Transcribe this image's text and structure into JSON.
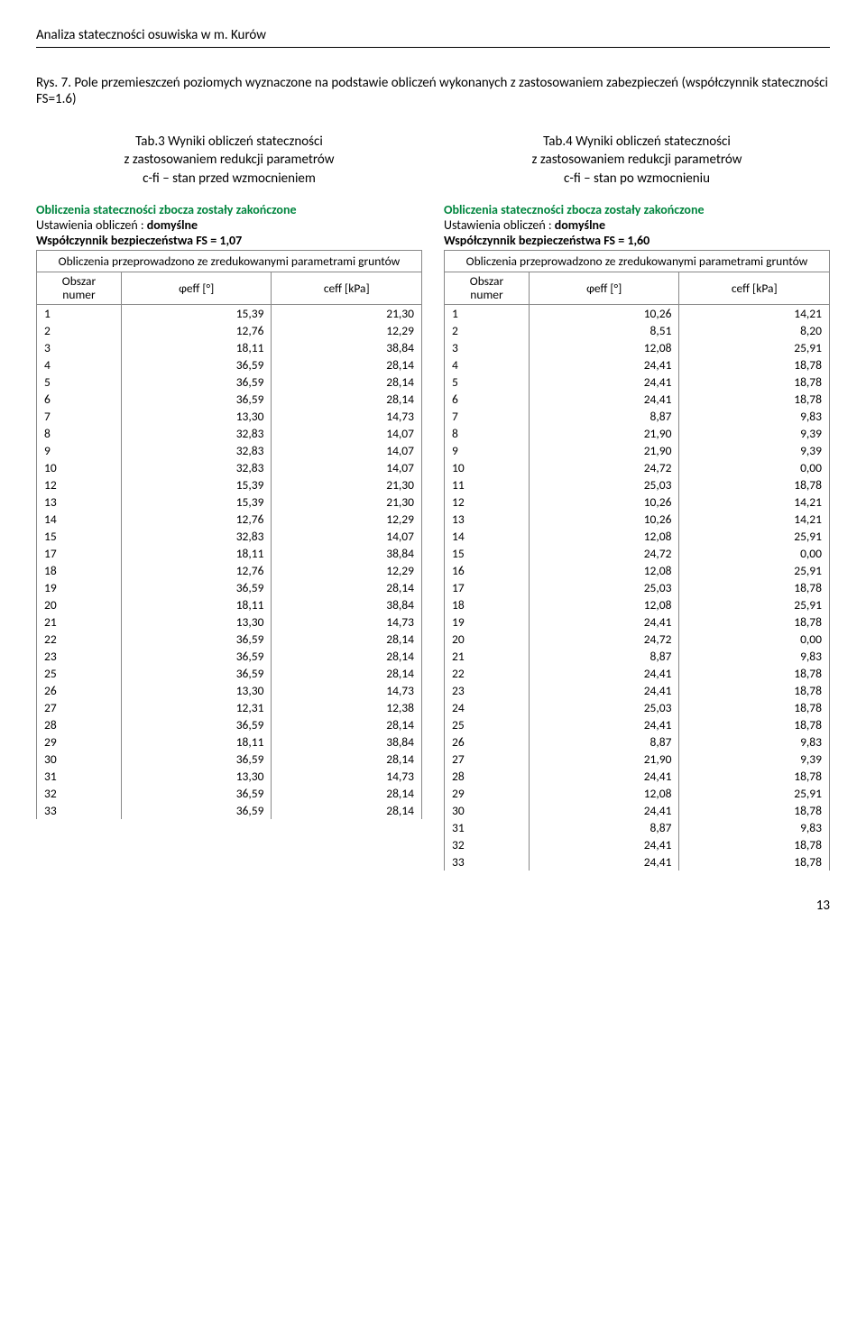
{
  "header": "Analiza stateczności osuwiska w m. Kurów",
  "fig_caption": "Rys. 7. Pole przemieszczeń poziomych wyznaczone na podstawie obliczeń wykonanych z zastosowaniem zabezpieczeń (współczynnik stateczności FS=1.6)",
  "left": {
    "caption": "Tab.3 Wyniki obliczeń stateczności\nz zastosowaniem redukcji parametrów\nc-fi – stan przed wzmocnieniem",
    "status": "Obliczenia stateczności zbocza zostały zakończone",
    "settings_prefix": "Ustawienia obliczeń : ",
    "settings_val": "domyślne",
    "fs": "Współczynnik bezpieczeństwa FS = 1,07",
    "note": "Obliczenia przeprowadzono ze zredukowanymi parametrami gruntów",
    "head1a": "Obszar",
    "head1b": "numer",
    "head2": "φeff [°]",
    "head3": "ceff [kPa]",
    "rows": [
      [
        "1",
        "15,39",
        "21,30"
      ],
      [
        "2",
        "12,76",
        "12,29"
      ],
      [
        "3",
        "18,11",
        "38,84"
      ],
      [
        "4",
        "36,59",
        "28,14"
      ],
      [
        "5",
        "36,59",
        "28,14"
      ],
      [
        "6",
        "36,59",
        "28,14"
      ],
      [
        "7",
        "13,30",
        "14,73"
      ],
      [
        "8",
        "32,83",
        "14,07"
      ],
      [
        "9",
        "32,83",
        "14,07"
      ],
      [
        "10",
        "32,83",
        "14,07"
      ],
      [
        "12",
        "15,39",
        "21,30"
      ],
      [
        "13",
        "15,39",
        "21,30"
      ],
      [
        "14",
        "12,76",
        "12,29"
      ],
      [
        "15",
        "32,83",
        "14,07"
      ],
      [
        "17",
        "18,11",
        "38,84"
      ],
      [
        "18",
        "12,76",
        "12,29"
      ],
      [
        "19",
        "36,59",
        "28,14"
      ],
      [
        "20",
        "18,11",
        "38,84"
      ],
      [
        "21",
        "13,30",
        "14,73"
      ],
      [
        "22",
        "36,59",
        "28,14"
      ],
      [
        "23",
        "36,59",
        "28,14"
      ],
      [
        "25",
        "36,59",
        "28,14"
      ],
      [
        "26",
        "13,30",
        "14,73"
      ],
      [
        "27",
        "12,31",
        "12,38"
      ],
      [
        "28",
        "36,59",
        "28,14"
      ],
      [
        "29",
        "18,11",
        "38,84"
      ],
      [
        "30",
        "36,59",
        "28,14"
      ],
      [
        "31",
        "13,30",
        "14,73"
      ],
      [
        "32",
        "36,59",
        "28,14"
      ],
      [
        "33",
        "36,59",
        "28,14"
      ]
    ]
  },
  "right": {
    "caption": "Tab.4 Wyniki obliczeń stateczności\nz zastosowaniem redukcji parametrów\nc-fi – stan po wzmocnieniu",
    "status": "Obliczenia stateczności zbocza zostały zakończone",
    "settings_prefix": "Ustawienia obliczeń : ",
    "settings_val": "domyślne",
    "fs": "Współczynnik bezpieczeństwa FS = 1,60",
    "note": "Obliczenia przeprowadzono ze zredukowanymi parametrami gruntów",
    "head1a": "Obszar",
    "head1b": "numer",
    "head2": "φeff [°]",
    "head3": "ceff [kPa]",
    "rows": [
      [
        "1",
        "10,26",
        "14,21"
      ],
      [
        "2",
        "8,51",
        "8,20"
      ],
      [
        "3",
        "12,08",
        "25,91"
      ],
      [
        "4",
        "24,41",
        "18,78"
      ],
      [
        "5",
        "24,41",
        "18,78"
      ],
      [
        "6",
        "24,41",
        "18,78"
      ],
      [
        "7",
        "8,87",
        "9,83"
      ],
      [
        "8",
        "21,90",
        "9,39"
      ],
      [
        "9",
        "21,90",
        "9,39"
      ],
      [
        "10",
        "24,72",
        "0,00"
      ],
      [
        "11",
        "25,03",
        "18,78"
      ],
      [
        "12",
        "10,26",
        "14,21"
      ],
      [
        "13",
        "10,26",
        "14,21"
      ],
      [
        "14",
        "12,08",
        "25,91"
      ],
      [
        "15",
        "24,72",
        "0,00"
      ],
      [
        "16",
        "12,08",
        "25,91"
      ],
      [
        "17",
        "25,03",
        "18,78"
      ],
      [
        "18",
        "12,08",
        "25,91"
      ],
      [
        "19",
        "24,41",
        "18,78"
      ],
      [
        "20",
        "24,72",
        "0,00"
      ],
      [
        "21",
        "8,87",
        "9,83"
      ],
      [
        "22",
        "24,41",
        "18,78"
      ],
      [
        "23",
        "24,41",
        "18,78"
      ],
      [
        "24",
        "25,03",
        "18,78"
      ],
      [
        "25",
        "24,41",
        "18,78"
      ],
      [
        "26",
        "8,87",
        "9,83"
      ],
      [
        "27",
        "21,90",
        "9,39"
      ],
      [
        "28",
        "24,41",
        "18,78"
      ],
      [
        "29",
        "12,08",
        "25,91"
      ],
      [
        "30",
        "24,41",
        "18,78"
      ],
      [
        "31",
        "8,87",
        "9,83"
      ],
      [
        "32",
        "24,41",
        "18,78"
      ],
      [
        "33",
        "24,41",
        "18,78"
      ]
    ]
  },
  "page_num": "13"
}
